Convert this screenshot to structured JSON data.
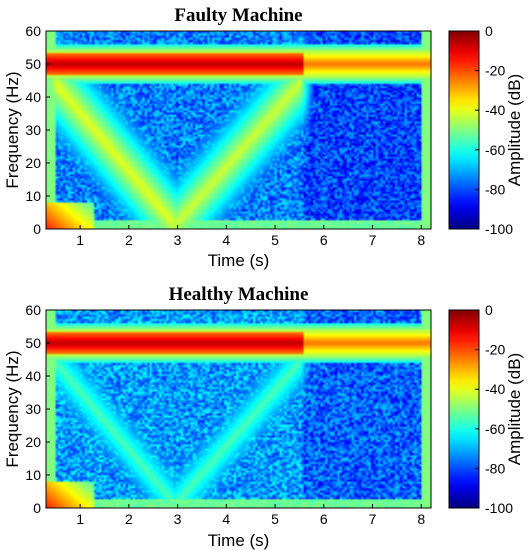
{
  "chart_data": [
    {
      "type": "heatmap",
      "title": "Faulty Machine",
      "xlabel": "Time (s)",
      "ylabel": "Frequency (Hz)",
      "xlim": [
        0.3,
        8.2
      ],
      "ylim": [
        0,
        60
      ],
      "xticks": [
        "1",
        "2",
        "3",
        "4",
        "5",
        "6",
        "7",
        "8"
      ],
      "yticks": [
        "0",
        "10",
        "20",
        "30",
        "40",
        "50",
        "60"
      ],
      "colorbar": {
        "label": "Amplitude (dB)",
        "range": [
          -100,
          0
        ],
        "ticks": [
          "0",
          "-20",
          "-40",
          "-60",
          "-80",
          "-100"
        ]
      },
      "features": {
        "line_frequency_hz": 50,
        "line_band_level_db": -5,
        "background_level_db": -75,
        "sweep_down": {
          "t_start_s": 0.5,
          "f_start_hz": 44,
          "t_end_s": 2.9,
          "f_end_hz": 2,
          "level_db": -40
        },
        "sweep_up": {
          "t_start_s": 3.0,
          "f_start_hz": 2,
          "t_end_s": 5.5,
          "f_end_hz": 44,
          "level_db": -42
        },
        "low_frequency_burst": {
          "t_start_s": 0.3,
          "t_end_s": 1.3,
          "f_max_hz": 8,
          "level_db": -15
        }
      }
    },
    {
      "type": "heatmap",
      "title": "Healthy Machine",
      "xlabel": "Time (s)",
      "ylabel": "Frequency (Hz)",
      "xlim": [
        0.3,
        8.2
      ],
      "ylim": [
        0,
        60
      ],
      "xticks": [
        "1",
        "2",
        "3",
        "4",
        "5",
        "6",
        "7",
        "8"
      ],
      "yticks": [
        "0",
        "10",
        "20",
        "30",
        "40",
        "50",
        "60"
      ],
      "colorbar": {
        "label": "Amplitude (dB)",
        "range": [
          -100,
          0
        ],
        "ticks": [
          "0",
          "-20",
          "-40",
          "-60",
          "-80",
          "-100"
        ]
      },
      "features": {
        "line_frequency_hz": 50,
        "line_band_level_db": -5,
        "background_level_db": -72,
        "sweep_down": {
          "t_start_s": 0.5,
          "f_start_hz": 44,
          "t_end_s": 2.9,
          "f_end_hz": 2,
          "level_db": -55
        },
        "sweep_up": {
          "t_start_s": 3.0,
          "f_start_hz": 2,
          "t_end_s": 5.5,
          "f_end_hz": 44,
          "level_db": -55
        },
        "low_frequency_burst": {
          "t_start_s": 0.3,
          "t_end_s": 1.3,
          "f_max_hz": 8,
          "level_db": -15
        }
      }
    }
  ]
}
